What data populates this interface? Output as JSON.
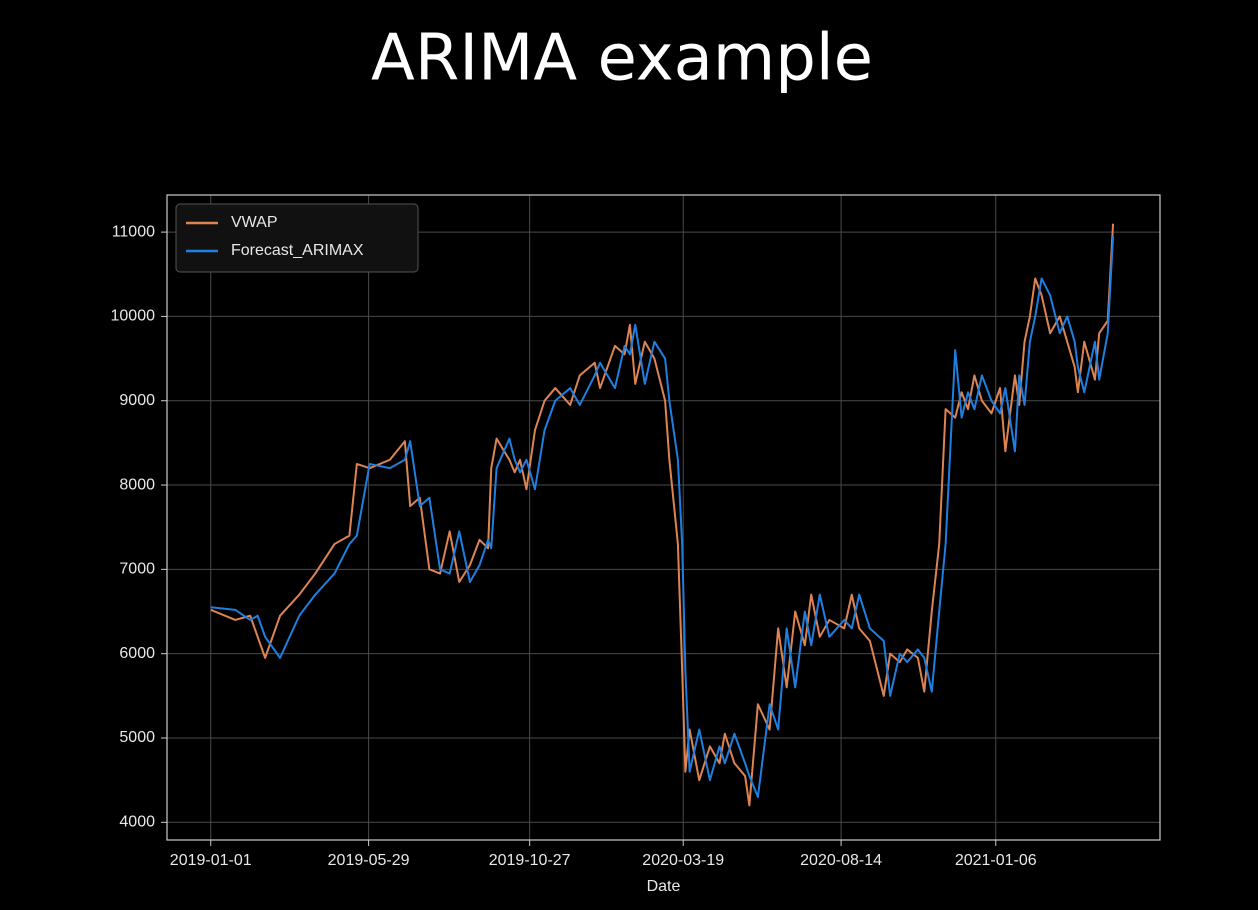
{
  "chart_data": {
    "type": "line",
    "title": "ARIMA example",
    "xlabel": "Date",
    "x": [
      "2019-01-01",
      "2019-01-24",
      "2019-02-07",
      "2019-02-14",
      "2019-02-21",
      "2019-03-07",
      "2019-03-25",
      "2019-04-09",
      "2019-04-27",
      "2019-05-11",
      "2019-05-18",
      "2019-05-30",
      "2019-06-18",
      "2019-07-02",
      "2019-07-07",
      "2019-07-16",
      "2019-07-25",
      "2019-08-04",
      "2019-08-13",
      "2019-08-22",
      "2019-09-01",
      "2019-09-10",
      "2019-09-18",
      "2019-09-21",
      "2019-09-26",
      "2019-10-08",
      "2019-10-13",
      "2019-10-18",
      "2019-10-24",
      "2019-11-01",
      "2019-11-10",
      "2019-11-20",
      "2019-12-04",
      "2019-12-13",
      "2019-12-27",
      "2020-01-01",
      "2020-01-15",
      "2020-01-24",
      "2020-01-29",
      "2020-02-03",
      "2020-02-12",
      "2020-02-21",
      "2020-03-02",
      "2020-03-06",
      "2020-03-14",
      "2020-03-18",
      "2020-03-21",
      "2020-03-25",
      "2020-04-03",
      "2020-04-13",
      "2020-04-22",
      "2020-04-27",
      "2020-05-06",
      "2020-05-16",
      "2020-05-20",
      "2020-05-28",
      "2020-06-08",
      "2020-06-16",
      "2020-06-24",
      "2020-07-02",
      "2020-07-11",
      "2020-07-17",
      "2020-07-25",
      "2020-08-03",
      "2020-08-17",
      "2020-08-24",
      "2020-08-31",
      "2020-09-10",
      "2020-09-23",
      "2020-09-29",
      "2020-10-08",
      "2020-10-15",
      "2020-10-25",
      "2020-10-31",
      "2020-11-07",
      "2020-11-14",
      "2020-11-20",
      "2020-11-29",
      "2020-12-05",
      "2020-12-11",
      "2020-12-17",
      "2020-12-24",
      "2021-01-02",
      "2021-01-10",
      "2021-01-15",
      "2021-01-24",
      "2021-01-28",
      "2021-02-02",
      "2021-02-07",
      "2021-02-12",
      "2021-02-18",
      "2021-02-26",
      "2021-03-07",
      "2021-03-14",
      "2021-03-21",
      "2021-03-24",
      "2021-03-30",
      "2021-04-09",
      "2021-04-13",
      "2021-04-21",
      "2021-04-26"
    ],
    "series": [
      {
        "name": "VWAP",
        "color": "#dd8452",
        "values": [
          6520,
          6400,
          6450,
          6200,
          5950,
          6450,
          6700,
          6950,
          7300,
          7400,
          8250,
          8200,
          8300,
          8520,
          7750,
          7850,
          7000,
          6950,
          7450,
          6850,
          7050,
          7350,
          7250,
          8200,
          8550,
          8300,
          8150,
          8300,
          7950,
          8650,
          9000,
          9150,
          8950,
          9300,
          9450,
          9150,
          9650,
          9550,
          9900,
          9200,
          9700,
          9500,
          9000,
          8300,
          7300,
          5800,
          4600,
          5100,
          4500,
          4900,
          4700,
          5050,
          4700,
          4550,
          4200,
          5400,
          5100,
          6300,
          5600,
          6500,
          6100,
          6700,
          6200,
          6400,
          6300,
          6700,
          6300,
          6150,
          5500,
          6000,
          5900,
          6050,
          5950,
          5550,
          6500,
          7300,
          8900,
          8800,
          9100,
          8900,
          9300,
          9000,
          8850,
          9150,
          8400,
          9300,
          8950,
          9700,
          10000,
          10450,
          10250,
          9800,
          10000,
          9700,
          9400,
          9100,
          9700,
          9250,
          9800,
          9950,
          11100
        ]
      },
      {
        "name": "Forecast_ARIMAX",
        "color": "#1f7fe0",
        "values": [
          6550,
          6520,
          6400,
          6450,
          6200,
          5950,
          6450,
          6700,
          6950,
          7300,
          7400,
          8250,
          8200,
          8300,
          8520,
          7750,
          7850,
          7000,
          6950,
          7450,
          6850,
          7050,
          7350,
          7250,
          8200,
          8550,
          8300,
          8150,
          8300,
          7950,
          8650,
          9000,
          9150,
          8950,
          9300,
          9450,
          9150,
          9650,
          9550,
          9900,
          9200,
          9700,
          9500,
          9000,
          8300,
          7300,
          5800,
          4600,
          5100,
          4500,
          4900,
          4700,
          5050,
          4700,
          4550,
          4300,
          5400,
          5100,
          6300,
          5600,
          6500,
          6100,
          6700,
          6200,
          6400,
          6300,
          6700,
          6300,
          6150,
          5500,
          6000,
          5900,
          6050,
          5950,
          5550,
          6500,
          7300,
          9600,
          8800,
          9100,
          8900,
          9300,
          9000,
          8850,
          9150,
          8400,
          9300,
          8950,
          9700,
          10000,
          10450,
          10250,
          9800,
          10000,
          9700,
          9400,
          9100,
          9700,
          9250,
          9800,
          10950
        ]
      }
    ],
    "xlim": [
      "2018-11-21",
      "2021-06-09"
    ],
    "xticks": [
      "2019-01-01",
      "2019-05-29",
      "2019-10-27",
      "2020-03-19",
      "2020-08-14",
      "2021-01-06"
    ],
    "ylim": [
      3790,
      11440
    ],
    "yticks": [
      4000,
      5000,
      6000,
      7000,
      8000,
      9000,
      10000,
      11000
    ],
    "grid": true,
    "legend": "upper left"
  }
}
